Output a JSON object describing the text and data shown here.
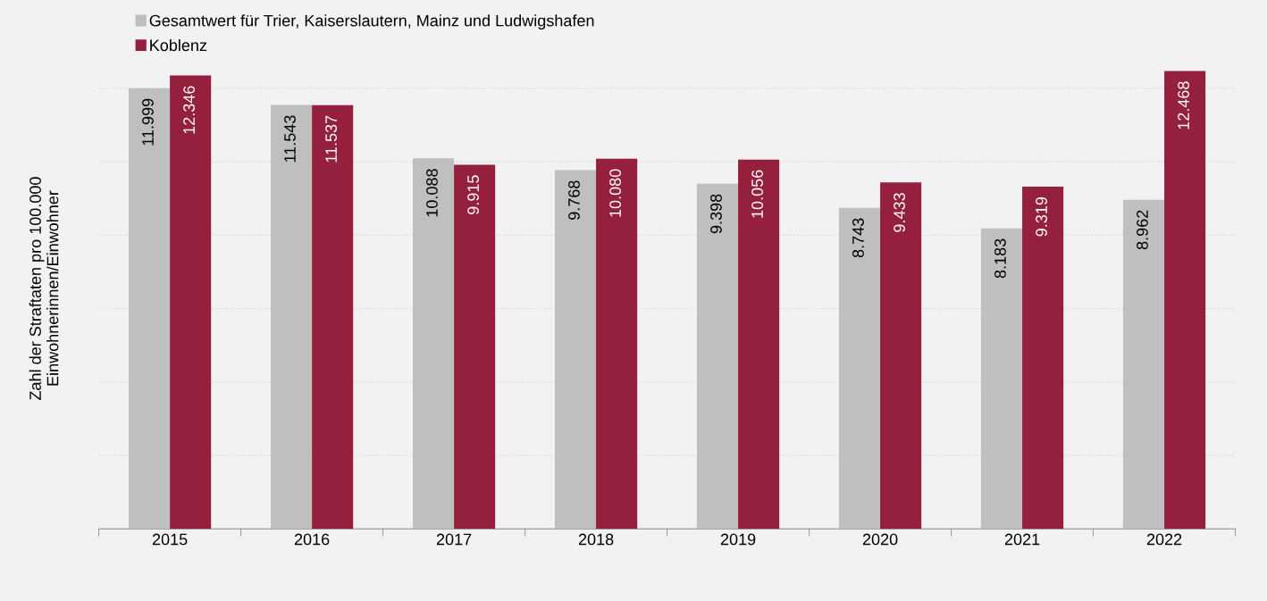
{
  "chart_data": {
    "type": "bar",
    "ylabel": "Zahl der Straftaten pro 100.000\nEinwohnerinnen/Einwohner",
    "categories": [
      "2015",
      "2016",
      "2017",
      "2018",
      "2019",
      "2020",
      "2021",
      "2022"
    ],
    "series": [
      {
        "name": "Gesamtwert für Trier, Kaiserslautern, Mainz und Ludwigshafen",
        "color": "#bfbfbf",
        "values": [
          11999,
          11543,
          10088,
          9768,
          9398,
          8743,
          8183,
          8962
        ],
        "value_labels": [
          "11.999",
          "11.543",
          "10.088",
          "9.768",
          "9.398",
          "8.743",
          "8.183",
          "8.962"
        ]
      },
      {
        "name": "Koblenz",
        "color": "#95203d",
        "values": [
          12346,
          11537,
          9915,
          10080,
          10056,
          9433,
          9319,
          12468
        ],
        "value_labels": [
          "12.346",
          "11.537",
          "9.915",
          "10.080",
          "10.056",
          "9.433",
          "9.319",
          "12.468"
        ]
      }
    ],
    "tick_labels": "x",
    "grid": "y",
    "legend": "top left"
  }
}
